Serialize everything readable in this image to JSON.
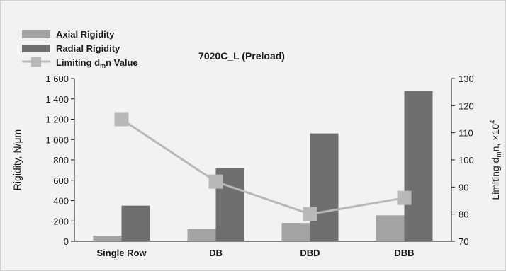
{
  "chart_data": {
    "type": "bar",
    "title": "7020C_L (Preload)",
    "categories": [
      "Single Row",
      "DB",
      "DBD",
      "DBB"
    ],
    "series": [
      {
        "name": "Axial Rigidity",
        "kind": "bar",
        "axis": "left",
        "color": "#a3a3a3",
        "values": [
          55,
          125,
          180,
          255
        ]
      },
      {
        "name": "Radial Rigidity",
        "kind": "bar",
        "axis": "left",
        "color": "#6f6f6f",
        "values": [
          350,
          720,
          1060,
          1480
        ]
      },
      {
        "name_parts": [
          "Limiting d",
          "m",
          "n Value"
        ],
        "kind": "line",
        "axis": "right",
        "color": "#b8b8b8",
        "values": [
          115,
          92,
          80,
          86
        ]
      }
    ],
    "ylabel": "Rigidity, N/μm",
    "ylabel2_parts": [
      "Limiting d",
      "m",
      "n, ×10",
      "4"
    ],
    "ylim": [
      0,
      1600
    ],
    "ylim2": [
      70,
      130
    ],
    "yticks": [
      "0",
      "200",
      "400",
      "600",
      "800",
      "1 000",
      "1 200",
      "1 400",
      "1 600"
    ],
    "yticks2": [
      "70",
      "80",
      "90",
      "100",
      "110",
      "120",
      "130"
    ],
    "legend_position": "top-left",
    "grid": false
  }
}
